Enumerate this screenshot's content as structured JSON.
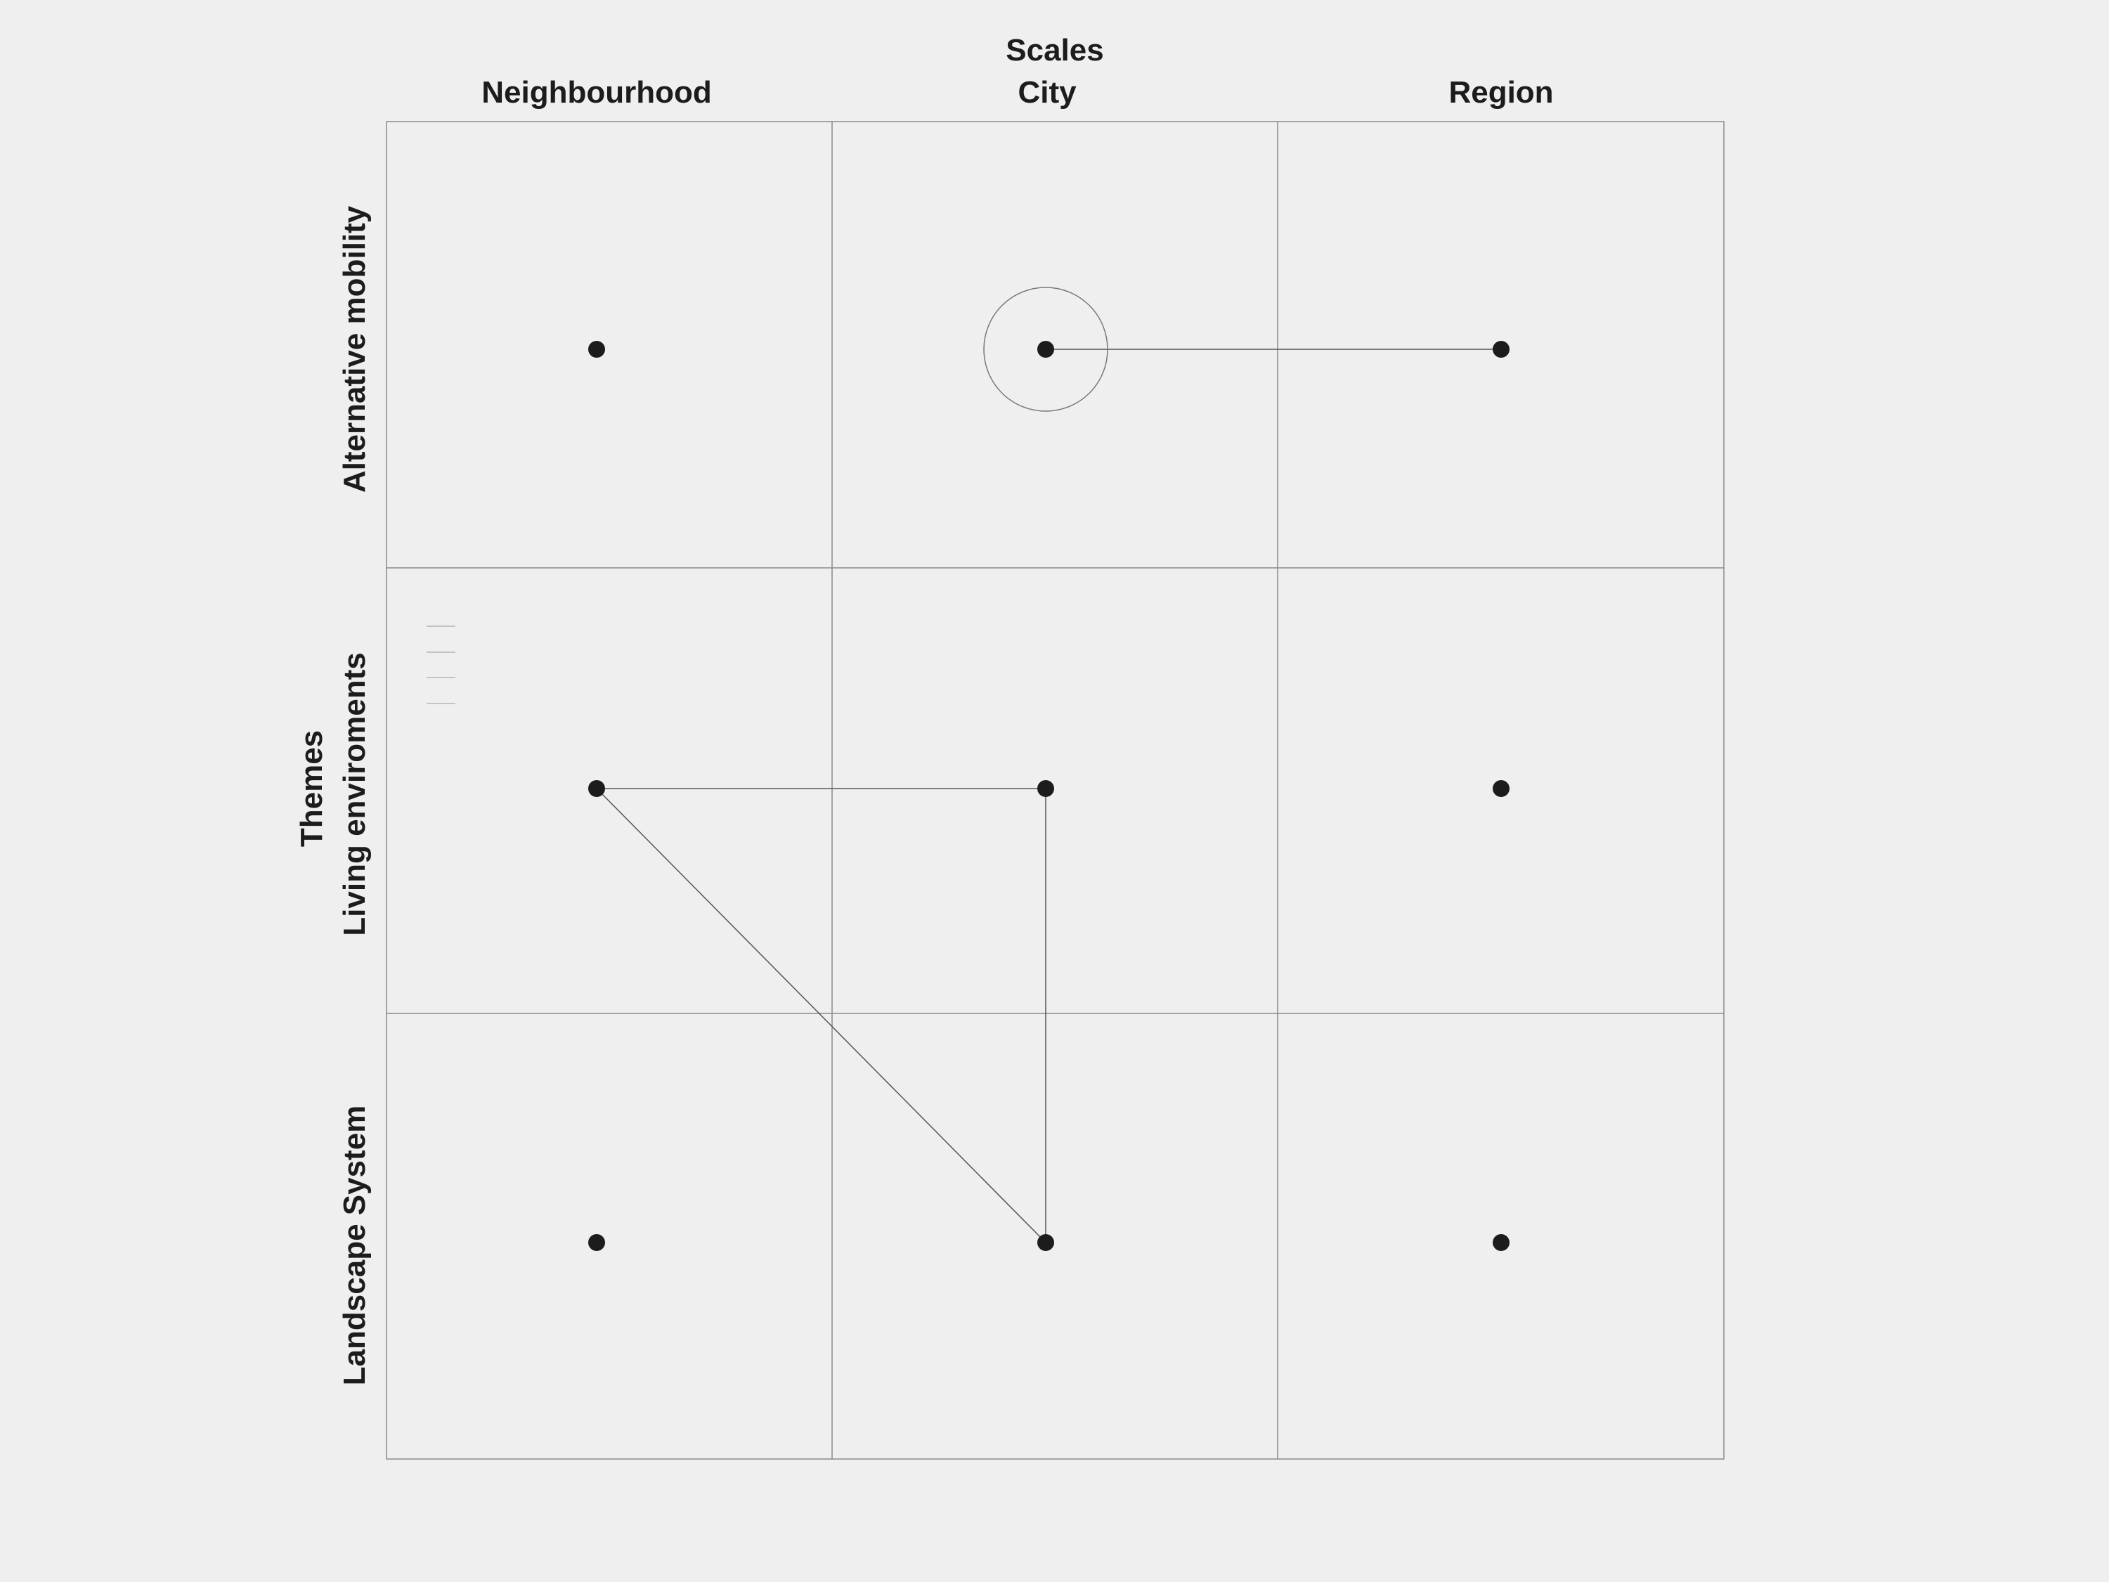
{
  "scales": {
    "title": "Scales",
    "columns": [
      "Neighbourhood",
      "City",
      "Region"
    ]
  },
  "themes": {
    "title": "Themes",
    "rows": [
      "Alternative mobility",
      "Living enviroments",
      "Landscape System"
    ]
  },
  "colors": {
    "background": "#efefef",
    "grid_line": "#8a8a8a",
    "node": "#1c1c1c",
    "text": "#1c1c1c"
  },
  "nodes": [
    {
      "id": "mobility-neighbourhood",
      "row": 0,
      "col": 0
    },
    {
      "id": "mobility-city",
      "row": 0,
      "col": 1,
      "highlighted": true
    },
    {
      "id": "mobility-region",
      "row": 0,
      "col": 2
    },
    {
      "id": "living-neighbourhood",
      "row": 1,
      "col": 0
    },
    {
      "id": "living-city",
      "row": 1,
      "col": 1
    },
    {
      "id": "living-region",
      "row": 1,
      "col": 2
    },
    {
      "id": "landscape-neighbourhood",
      "row": 2,
      "col": 0
    },
    {
      "id": "landscape-city",
      "row": 2,
      "col": 1
    },
    {
      "id": "landscape-region",
      "row": 2,
      "col": 2
    }
  ],
  "links": [
    {
      "from": "mobility-city",
      "to": "mobility-region"
    },
    {
      "from": "living-neighbourhood",
      "to": "living-city"
    },
    {
      "from": "living-city",
      "to": "landscape-city"
    },
    {
      "from": "living-neighbourhood",
      "to": "landscape-city"
    }
  ]
}
